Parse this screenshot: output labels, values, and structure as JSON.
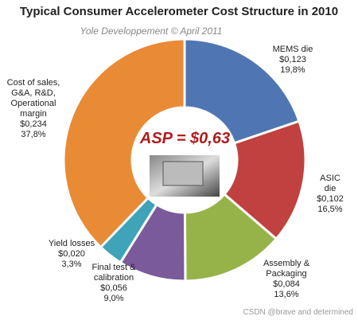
{
  "chart_data": {
    "type": "donut",
    "title": "Typical Consumer Accelerometer Cost Structure in 2010",
    "subtitle": "Yole Developpement © April 2011",
    "center_label": "ASP = $0,63",
    "categories": [
      "MEMS die",
      "ASIC die",
      "Assembly &\nPackaging",
      "Final test &\ncalibration",
      "Yield losses",
      "Cost of sales,\nG&A, R&D,\nOperational\nmargin"
    ],
    "values": [
      19.8,
      16.5,
      13.6,
      9.0,
      3.3,
      37.8
    ],
    "value_labels": [
      "19,8%",
      "16,5%",
      "13,6%",
      "9,0%",
      "3,3%",
      "37,8%"
    ],
    "costs": [
      0.123,
      0.102,
      0.084,
      0.056,
      0.02,
      0.234
    ],
    "cost_labels": [
      "$0,123",
      "$0,102",
      "$0,084",
      "$0,056",
      "$0,020",
      "$0,234"
    ],
    "colors": [
      "#4f76b3",
      "#c0413f",
      "#96b34a",
      "#7a5a9b",
      "#3fa3b9",
      "#e98a35"
    ],
    "watermark": "CSDN @brave and determined"
  }
}
